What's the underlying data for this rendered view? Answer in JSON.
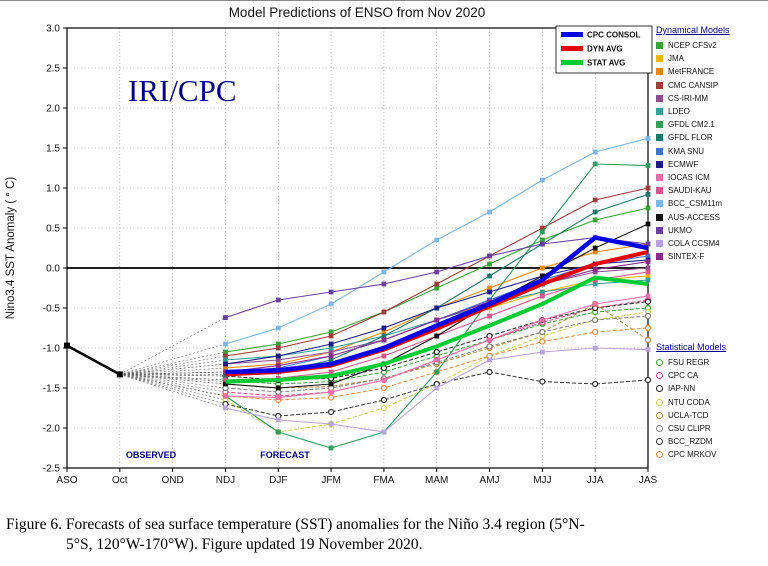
{
  "watermark": "IRI/CPC",
  "caption": {
    "line1": "Figure 6. Forecasts of sea surface temperature (SST) anomalies  for the Niño 3.4 region (5°N-",
    "line2": "5°S, 120°W-170°W).  Figure updated 19 November 2020."
  },
  "legend": {
    "dynamical_header": "Dynamical Models",
    "statistical_header": "Statistical Models"
  },
  "chart_data": {
    "type": "line",
    "title": "Model Predictions of ENSO from Nov 2020",
    "ylabel": "Nino3.4 SST Anomaly ( ° C)",
    "ylim": [
      -2.5,
      3.0
    ],
    "ytick_step": 0.5,
    "categories": [
      "ASO",
      "Oct",
      "OND",
      "NDJ",
      "DJF",
      "JFM",
      "FMA",
      "MAM",
      "AMJ",
      "MJJ",
      "JJA",
      "JAS"
    ],
    "observed_label": "OBSERVED",
    "forecast_label": "FORECAST",
    "forecast_start": "NDJ",
    "observed": {
      "categories": [
        "ASO",
        "Oct"
      ],
      "values": [
        -0.97,
        -1.33
      ],
      "color": "#000000"
    },
    "main_series": [
      {
        "name": "CPC CONSOL",
        "color": "#0000e6",
        "values": [
          -1.3,
          -1.28,
          -1.2,
          -1.0,
          -0.72,
          -0.45,
          -0.15,
          0.38,
          0.25
        ]
      },
      {
        "name": "DYN AVG",
        "color": "#e60000",
        "values": [
          -1.33,
          -1.3,
          -1.22,
          -1.02,
          -0.76,
          -0.48,
          -0.2,
          0.05,
          0.2
        ]
      },
      {
        "name": "STAT AVG",
        "color": "#00cc33",
        "values": [
          -1.42,
          -1.4,
          -1.35,
          -1.2,
          -0.98,
          -0.72,
          -0.45,
          -0.12,
          -0.2
        ]
      }
    ],
    "dynamical_models": [
      {
        "name": "NCEP CFSv2",
        "color": "#33a532",
        "values": [
          -1.05,
          -0.95,
          -0.8,
          -0.55,
          -0.25,
          0.05,
          0.35,
          0.6,
          0.75
        ]
      },
      {
        "name": "JMA",
        "color": "#f2b705",
        "values": [
          -1.3,
          -1.3,
          -1.2,
          -1.0,
          -0.75,
          -0.5,
          -0.3,
          -0.15,
          -0.1
        ]
      },
      {
        "name": "MetFRANCE",
        "color": "#f28705",
        "values": [
          -1.25,
          -1.2,
          -1.05,
          -0.8,
          -0.5,
          -0.25,
          0.0,
          0.2,
          0.3
        ]
      },
      {
        "name": "CMC CANSIP",
        "color": "#a33b3b",
        "values": [
          -1.1,
          -1.0,
          -0.85,
          -0.55,
          -0.2,
          0.15,
          0.5,
          0.85,
          1.0
        ]
      },
      {
        "name": "CS-IRI-MM",
        "color": "#8f4d8f",
        "values": [
          -1.2,
          -1.15,
          -1.05,
          -0.9,
          -0.65,
          -0.4,
          -0.2,
          -0.05,
          0.0
        ]
      },
      {
        "name": "LDEO",
        "color": "#2fa098",
        "values": [
          -1.15,
          -1.1,
          -1.0,
          -0.85,
          -0.65,
          -0.45,
          -0.3,
          -0.2,
          -0.15
        ]
      },
      {
        "name": "GFDL CM2.1",
        "color": "#2e9e5b",
        "values": [
          -1.6,
          -2.05,
          -2.25,
          -2.05,
          -1.3,
          -0.4,
          0.45,
          1.3,
          1.28
        ]
      },
      {
        "name": "GFDL FLOR",
        "color": "#1f7a6e",
        "values": [
          -1.35,
          -1.3,
          -1.15,
          -0.85,
          -0.5,
          -0.1,
          0.3,
          0.7,
          0.92
        ]
      },
      {
        "name": "KMA SNU",
        "color": "#3f74d1",
        "values": [
          -1.3,
          -1.25,
          -1.1,
          -0.9,
          -0.65,
          -0.4,
          -0.15,
          0.05,
          0.15
        ]
      },
      {
        "name": "ECMWF",
        "color": "#1a1a8c",
        "values": [
          -1.2,
          -1.1,
          -0.95,
          -0.75,
          -0.5,
          -0.3,
          -0.1,
          0.05,
          0.1
        ]
      },
      {
        "name": "IOCAS ICM",
        "color": "#f06eaa",
        "values": [
          -1.6,
          -1.62,
          -1.55,
          -1.4,
          -1.15,
          -0.9,
          -0.65,
          -0.45,
          -0.35
        ]
      },
      {
        "name": "SAUDI-KAU",
        "color": "#d9538c",
        "values": [
          -1.4,
          -1.38,
          -1.3,
          -1.1,
          -0.85,
          -0.6,
          -0.35,
          -0.15,
          -0.05
        ]
      },
      {
        "name": "BCC_CSM11m",
        "color": "#7ab8e8",
        "values": [
          -0.95,
          -0.75,
          -0.45,
          -0.05,
          0.35,
          0.7,
          1.1,
          1.45,
          1.62
        ]
      },
      {
        "name": "AUS-ACCESS",
        "color": "#111111",
        "values": [
          -1.45,
          -1.5,
          -1.45,
          -1.2,
          -0.85,
          -0.45,
          -0.1,
          0.25,
          0.55
        ]
      },
      {
        "name": "UKMO",
        "color": "#6a3fa0",
        "values": [
          -0.62,
          -0.4,
          -0.3,
          -0.2,
          -0.05,
          0.15,
          0.3,
          0.38,
          0.3
        ]
      },
      {
        "name": "COLA CCSM4",
        "color": "#b9a3dc",
        "values": [
          -1.75,
          -1.9,
          -1.95,
          -2.05,
          -1.5,
          -1.15,
          -1.05,
          -1.0,
          -1.02
        ]
      },
      {
        "name": "SINTEX-F",
        "color": "#8c2a8c",
        "values": [
          -1.3,
          -1.22,
          -1.1,
          -0.9,
          -0.65,
          -0.42,
          -0.2,
          -0.02,
          0.08
        ]
      }
    ],
    "statistical_models": [
      {
        "name": "FSU REGR",
        "color": "#33a532",
        "values": [
          -1.4,
          -1.45,
          -1.42,
          -1.3,
          -1.1,
          -0.9,
          -0.7,
          -0.55,
          -0.5
        ]
      },
      {
        "name": "CPC CA",
        "color": "#e0408c",
        "values": [
          -1.55,
          -1.6,
          -1.55,
          -1.4,
          -1.15,
          -0.9,
          -0.68,
          -0.5,
          -0.4
        ]
      },
      {
        "name": "IAP-NN",
        "color": "#222222",
        "values": [
          -1.35,
          -1.4,
          -1.38,
          -1.25,
          -1.05,
          -0.85,
          -0.65,
          -0.5,
          -0.42
        ]
      },
      {
        "name": "NTU CODA",
        "color": "#c9d44a",
        "values": [
          -1.65,
          -2.05,
          -1.95,
          -1.75,
          -1.45,
          -1.1,
          -0.85,
          -0.65,
          -0.55
        ]
      },
      {
        "name": "UCLA-TCD",
        "color": "#c2893c",
        "values": [
          -1.45,
          -1.5,
          -1.48,
          -1.38,
          -1.2,
          -1.0,
          -0.8,
          -0.45,
          -0.9
        ]
      },
      {
        "name": "CSU CLIPR",
        "color": "#7f7f7f",
        "values": [
          -1.5,
          -1.55,
          -1.5,
          -1.38,
          -1.18,
          -0.98,
          -0.8,
          -0.65,
          -0.6
        ]
      },
      {
        "name": "BCC_RZDM",
        "color": "#333333",
        "values": [
          -1.7,
          -1.85,
          -1.8,
          -1.65,
          -1.45,
          -1.3,
          -1.42,
          -1.45,
          -1.4
        ]
      },
      {
        "name": "CPC MRKOV",
        "color": "#ef8a3c",
        "values": [
          -1.6,
          -1.65,
          -1.62,
          -1.5,
          -1.3,
          -1.1,
          -0.92,
          -0.8,
          -0.75
        ]
      }
    ]
  }
}
